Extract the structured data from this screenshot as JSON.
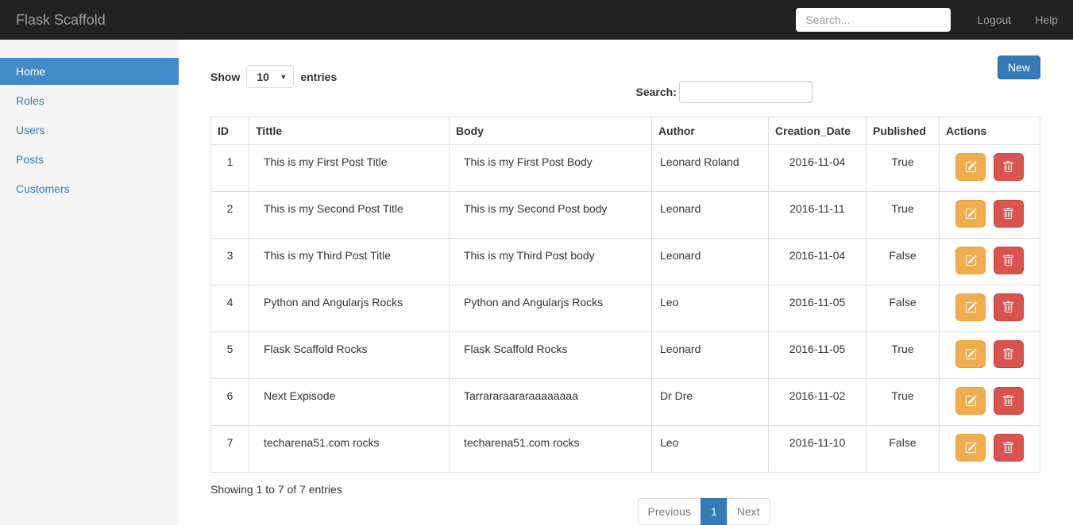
{
  "colors": {
    "navbar_bg": "#222222",
    "navbar_text": "#9d9d9d",
    "sidebar_bg": "#f5f5f5",
    "link_blue": "#337ab7",
    "active_item_bg": "#428bca",
    "primary_btn": "#337ab7",
    "warning_btn": "#f0ad4e",
    "danger_btn": "#d9534f",
    "pagination_active": "#337ab7",
    "border": "#dddddd"
  },
  "navbar": {
    "brand": "Flask Scaffold",
    "search_placeholder": "Search...",
    "logout_label": "Logout",
    "help_label": "Help"
  },
  "sidebar": {
    "items": [
      {
        "label": "Home",
        "active": true
      },
      {
        "label": "Roles",
        "active": false
      },
      {
        "label": "Users",
        "active": false
      },
      {
        "label": "Posts",
        "active": false
      },
      {
        "label": "Customers",
        "active": false
      }
    ]
  },
  "toolbar": {
    "show_label": "Show",
    "page_size": "10",
    "entries_label": "entries",
    "search_label": "Search:",
    "search_value": "",
    "new_label": "New"
  },
  "icons": {
    "edit": "pencil-square",
    "delete": "trash",
    "page_size_caret": "caret-down"
  },
  "table": {
    "headers": [
      "ID",
      "Tittle",
      "Body",
      "Author",
      "Creation_Date",
      "Published",
      "Actions"
    ],
    "rows": [
      {
        "id": "1",
        "title": "This is my First Post Title",
        "body": "This is my First Post Body",
        "author": "Leonard Roland",
        "date": "2016-11-04",
        "published": "True"
      },
      {
        "id": "2",
        "title": "This is my Second Post Title",
        "body": "This is my Second Post body",
        "author": "Leonard",
        "date": "2016-11-11",
        "published": "True"
      },
      {
        "id": "3",
        "title": "This is my Third Post Title",
        "body": "This is my Third Post body",
        "author": "Leonard",
        "date": "2016-11-04",
        "published": "False"
      },
      {
        "id": "4",
        "title": "Python and Angularjs Rocks",
        "body": "Python and Angularjs Rocks",
        "author": "Leo",
        "date": "2016-11-05",
        "published": "False"
      },
      {
        "id": "5",
        "title": "Flask Scaffold Rocks",
        "body": "Flask Scaffold Rocks",
        "author": "Leonard",
        "date": "2016-11-05",
        "published": "True"
      },
      {
        "id": "6",
        "title": "Next Expisode",
        "body": "Tarrararaararaaaaaaaa",
        "author": "Dr Dre",
        "date": "2016-11-02",
        "published": "True"
      },
      {
        "id": "7",
        "title": "techarena51.com rocks",
        "body": "techarena51.com rocks",
        "author": "Leo",
        "date": "2016-11-10",
        "published": "False"
      }
    ]
  },
  "footer": {
    "showing_info": "Showing 1 to 7 of 7 entries",
    "pagination": {
      "previous_label": "Previous",
      "current_page": "1",
      "next_label": "Next"
    }
  }
}
